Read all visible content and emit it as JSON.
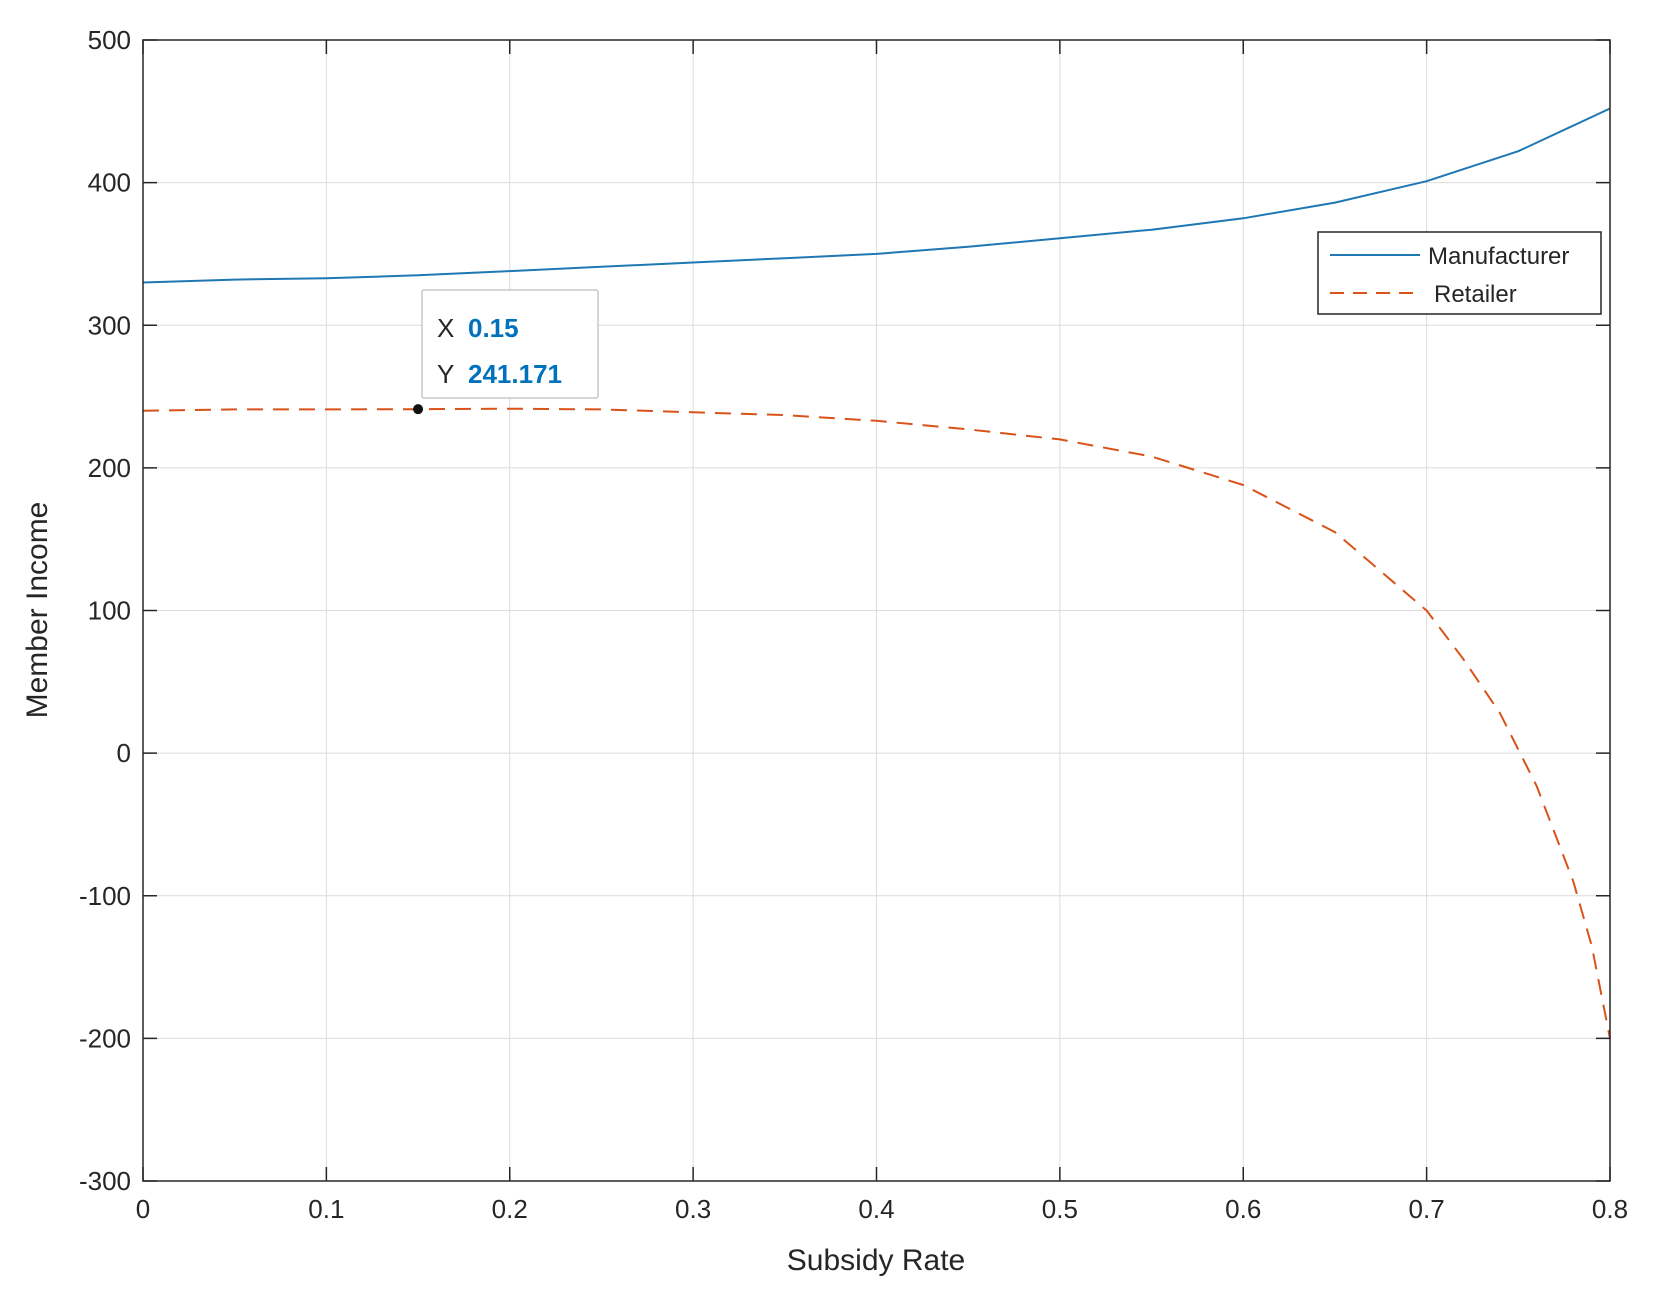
{
  "chart_data": {
    "type": "line",
    "xlabel": "Subsidy Rate",
    "ylabel": "Member Income",
    "xlim": [
      0,
      0.8
    ],
    "ylim": [
      -300,
      500
    ],
    "xticks": [
      0,
      0.1,
      0.2,
      0.3,
      0.4,
      0.5,
      0.6,
      0.7,
      0.8
    ],
    "xtick_labels": [
      "0",
      "0.1",
      "0.2",
      "0.3",
      "0.4",
      "0.5",
      "0.6",
      "0.7",
      "0.8"
    ],
    "yticks": [
      -300,
      -200,
      -100,
      0,
      100,
      200,
      300,
      400,
      500
    ],
    "ytick_labels": [
      "-300",
      "-200",
      "-100",
      "0",
      "100",
      "200",
      "300",
      "400",
      "500"
    ],
    "grid": true,
    "legend_position": "top-right",
    "series": [
      {
        "name": "Manufacturer",
        "color": "#1f77b4",
        "style": "solid",
        "x": [
          0,
          0.05,
          0.1,
          0.15,
          0.2,
          0.25,
          0.3,
          0.35,
          0.4,
          0.45,
          0.5,
          0.55,
          0.6,
          0.65,
          0.7,
          0.75,
          0.8
        ],
        "y": [
          330,
          332,
          333,
          335,
          338,
          341,
          344,
          347,
          350,
          355,
          361,
          367,
          375,
          386,
          401,
          422,
          452
        ]
      },
      {
        "name": "Retailer",
        "color": "#d95319",
        "style": "dashed",
        "x": [
          0,
          0.05,
          0.1,
          0.15,
          0.2,
          0.25,
          0.3,
          0.35,
          0.4,
          0.45,
          0.5,
          0.55,
          0.6,
          0.65,
          0.7,
          0.72,
          0.74,
          0.76,
          0.78,
          0.79,
          0.8
        ],
        "y": [
          240,
          241,
          241,
          241.171,
          241.5,
          241,
          239,
          237,
          233,
          227,
          220,
          208,
          188,
          155,
          100,
          66,
          28,
          -23,
          -90,
          -135,
          -200
        ]
      }
    ],
    "annotations": [
      {
        "type": "datatip",
        "x": 0.15,
        "y": 241.171,
        "x_label": "X",
        "y_label": "Y",
        "x_text": "0.15",
        "y_text": "241.171",
        "value_color": "#0072bd"
      }
    ]
  }
}
